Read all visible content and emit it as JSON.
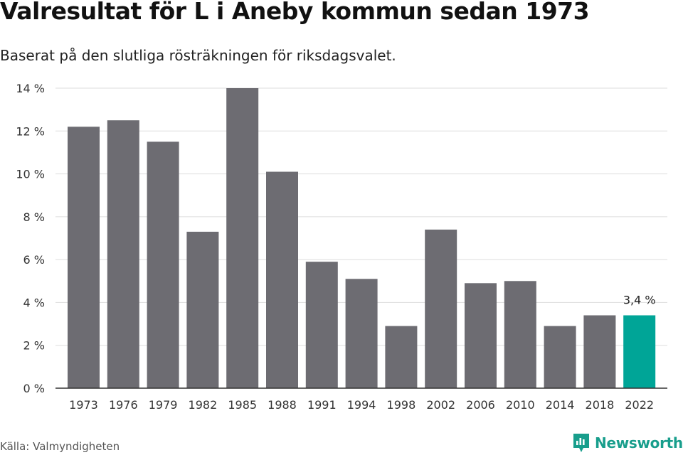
{
  "header": {
    "title": "Valresultat för L i Aneby kommun sedan 1973",
    "subtitle": "Baserat på den slutliga rösträkningen för riksdagsvalet."
  },
  "footer": {
    "source": "Källa: Valmyndigheten",
    "brand": "Newsworthy",
    "brand_icon": "newsworthy-logo-icon"
  },
  "colors": {
    "bar": "#6d6c72",
    "highlight": "#00a597",
    "grid": "#dedede",
    "axis": "#333333",
    "brand": "#189e8c"
  },
  "chart_data": {
    "type": "bar",
    "categories": [
      "1973",
      "1976",
      "1979",
      "1982",
      "1985",
      "1988",
      "1991",
      "1994",
      "1998",
      "2002",
      "2006",
      "2010",
      "2014",
      "2018",
      "2022"
    ],
    "values": [
      12.2,
      12.5,
      11.5,
      7.3,
      14.0,
      10.1,
      5.9,
      5.1,
      2.9,
      7.4,
      4.9,
      5.0,
      2.9,
      3.4,
      3.4
    ],
    "highlight_category": "2022",
    "annotation": "3,4 %",
    "y_ticks": [
      0,
      2,
      4,
      6,
      8,
      10,
      12,
      14
    ],
    "y_tick_labels": [
      "0 %",
      "2 %",
      "4 %",
      "6 %",
      "8 %",
      "10 %",
      "12 %",
      "14 %"
    ],
    "ylim": [
      0,
      14
    ],
    "xlabel": "",
    "ylabel": "",
    "grid": true,
    "legend": "none"
  }
}
